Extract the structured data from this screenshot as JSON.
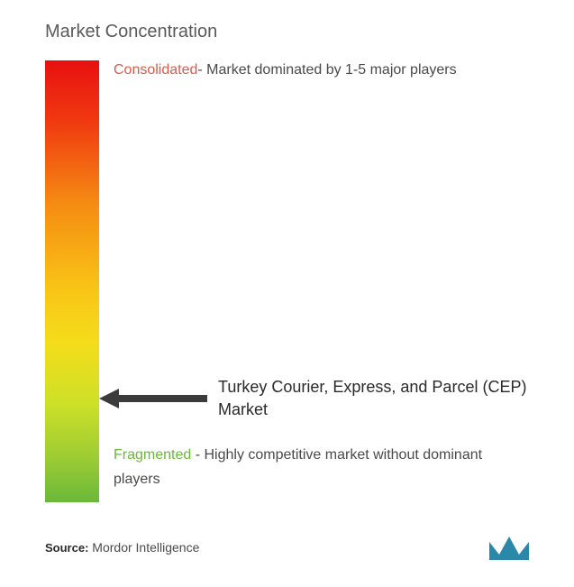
{
  "title": "Market Concentration",
  "gradient": {
    "colors": [
      "#e81010",
      "#f03a10",
      "#f58a12",
      "#f9c516",
      "#f4dd1a",
      "#cce028",
      "#9ccc33",
      "#6bb83a"
    ],
    "stops": [
      0,
      14,
      32,
      52,
      64,
      78,
      90,
      100
    ]
  },
  "consolidated": {
    "label": "Consolidated",
    "color": "#e05a4a",
    "description": "- Market dominated by 1-5 major players"
  },
  "fragmented": {
    "label": "Fragmented",
    "color": "#6bb83a",
    "description": " - Highly competitive market without dominant players"
  },
  "market": {
    "name": "Turkey Courier, Express, and Parcel (CEP) Market",
    "arrow_vertical_percent": 73
  },
  "arrow": {
    "stroke": "#3b3b3b",
    "fill": "#3b3b3b",
    "shaft_width": 8
  },
  "source": {
    "label": "Source:",
    "value": "Mordor Intelligence"
  },
  "logo": {
    "color": "#2a88a8"
  }
}
